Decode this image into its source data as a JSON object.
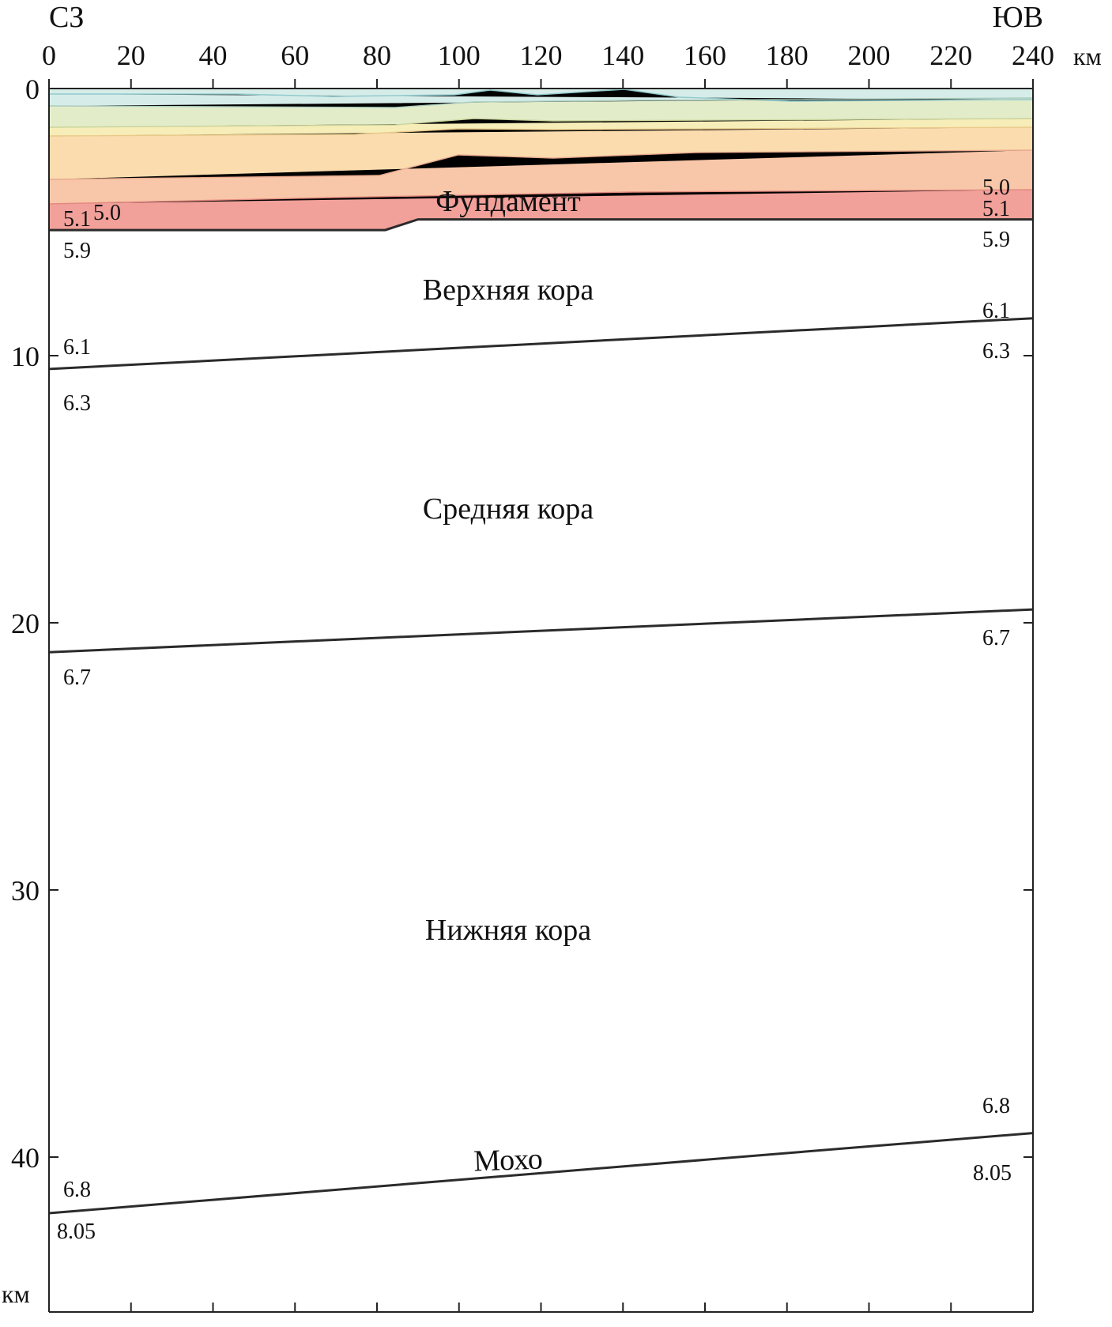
{
  "header": {
    "left_direction": "СЗ",
    "right_direction": "ЮВ",
    "x_unit": "км",
    "y_unit": "км"
  },
  "axes": {
    "x_ticks": [
      "0",
      "20",
      "40",
      "60",
      "80",
      "100",
      "120",
      "140",
      "160",
      "180",
      "200",
      "220",
      "240"
    ],
    "y_ticks": [
      "0",
      "10",
      "20",
      "30",
      "40"
    ],
    "x_range": [
      0,
      240
    ],
    "y_range": [
      0,
      46
    ],
    "y_inverted": true
  },
  "layers": {
    "basement": "Фундамент",
    "upper_crust": "Верхняя кора",
    "middle_crust": "Средняя кора",
    "lower_crust": "Нижняя кора",
    "moho": "Мохо"
  },
  "boundaries": [
    {
      "name": "basement-top",
      "points": [
        [
          0,
          5.3
        ],
        [
          82,
          5.3
        ],
        [
          90,
          4.9
        ],
        [
          240,
          4.9
        ]
      ]
    },
    {
      "name": "upper-middle",
      "points": [
        [
          0,
          10.5
        ],
        [
          240,
          8.6
        ]
      ]
    },
    {
      "name": "middle-lower",
      "points": [
        [
          0,
          21.1
        ],
        [
          240,
          19.5
        ]
      ]
    },
    {
      "name": "moho",
      "points": [
        [
          0,
          42.1
        ],
        [
          240,
          39.1
        ]
      ]
    }
  ],
  "velocities": {
    "left": {
      "sed_a": "5.1",
      "sed_b": "5.0",
      "below_basement": "5.9",
      "above_upper_middle": "6.1",
      "below_upper_middle": "6.3",
      "below_middle_lower": "6.7",
      "above_moho": "6.8",
      "below_moho": "8.05"
    },
    "right": {
      "sed_a": "5.0",
      "sed_b": "5.1",
      "below_basement": "5.9",
      "above_upper_middle": "6.1",
      "below_upper_middle": "6.3",
      "below_middle_lower": "6.7",
      "above_moho": "6.8",
      "below_moho": "8.05"
    }
  },
  "colors": {
    "sed_layer_1": "#d6ece8",
    "sed_layer_2": "#e3ecc9",
    "sed_layer_3": "#f6edb8",
    "sed_layer_4": "#fbdcae",
    "sed_layer_5": "#f8c6a8",
    "sed_layer_6": "#f2a09a",
    "boundary_line": "#2b2b2b",
    "sed_line": "#8fc9cc"
  }
}
